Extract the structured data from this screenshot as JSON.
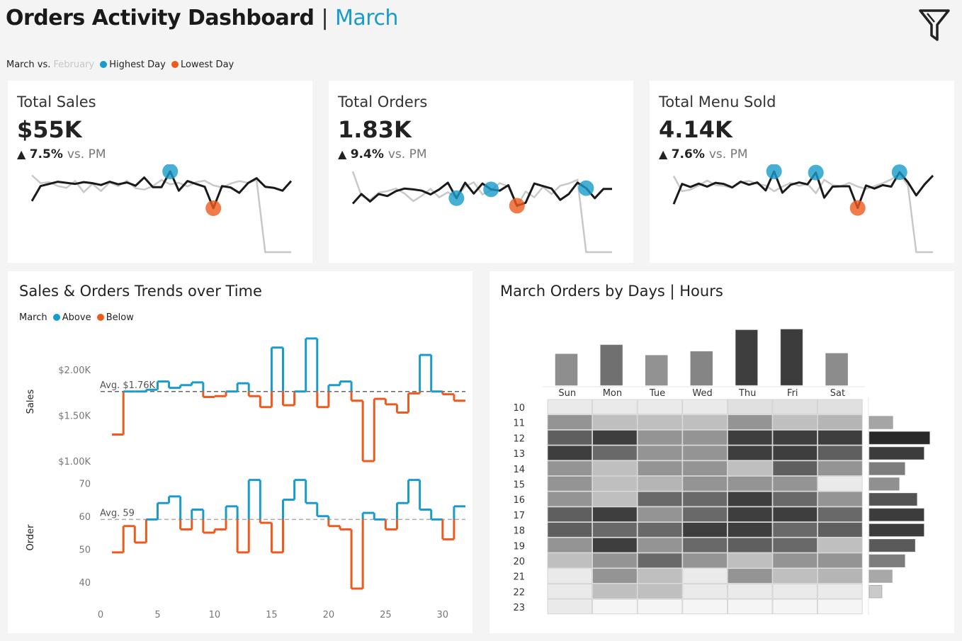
{
  "header": {
    "title": "Orders Activity Dashboard",
    "separator": "|",
    "month": "March"
  },
  "icons": {
    "filter": "filter-icon"
  },
  "legend_top": {
    "current": "March vs.",
    "previous": "February",
    "highest": "Highest  Day",
    "lowest": "Lowest Day"
  },
  "colors": {
    "accent": "#1a9bc9",
    "above": "#1a9bc9",
    "below": "#ee5a1e",
    "current_line": "#1a1a1a",
    "previous_line": "#c8c8c8"
  },
  "kpis": [
    {
      "label": "Total Sales",
      "value": "$55K",
      "arrow": "▲",
      "change": "7.5%",
      "vs": "vs. PM",
      "chart_data": {
        "type": "line",
        "series": [
          {
            "values": [
              2,
              6.2,
              6.8,
              7.4,
              7.1,
              6.8,
              7.3,
              7.0,
              6.5,
              7.4,
              6.7,
              7.2,
              6.3,
              8.6,
              5.9,
              5.9,
              10.3,
              4.9,
              7.6,
              6.8,
              6.0,
              0,
              6.2,
              5.8,
              4.3,
              7.0,
              8.4,
              6.0,
              5.7,
              4.9,
              7.6
            ]
          },
          {
            "values": [
              9.2,
              7.0,
              7.3,
              6.2,
              5.7,
              7.6,
              4.5,
              6.8,
              4.8,
              7.2,
              6.2,
              7.7,
              5.6,
              5.2,
              6.2,
              7.9,
              6.7,
              7.1,
              6.1,
              7.3,
              7.7,
              6.4,
              5.8,
              6.9,
              7.6,
              7.1,
              7.9,
              -12.3,
              -12.3,
              -12.3,
              -12.3
            ]
          }
        ],
        "highest_day": 17,
        "lowest_day": 22
      }
    },
    {
      "label": "Total Orders",
      "value": "1.83K",
      "arrow": "▲",
      "change": "9.4%",
      "vs": "vs. PM",
      "chart_data": {
        "type": "line",
        "series": [
          {
            "values": [
              2.0,
              4.3,
              2.5,
              4.3,
              3.8,
              5.0,
              5.6,
              5.4,
              5.1,
              4.2,
              5.4,
              7.0,
              3.3,
              7.0,
              4.4,
              6.8,
              5.4,
              5.1,
              6.4,
              1.5,
              2.2,
              6.8,
              6.2,
              5.6,
              2.9,
              4.3,
              7.0,
              5.7,
              3.3,
              5.5,
              5.5
            ]
          },
          {
            "values": [
              9.7,
              3.9,
              2.9,
              4.6,
              5.0,
              5.6,
              4.4,
              2.6,
              3.9,
              5.5,
              3.5,
              4.7,
              3.5,
              6.1,
              7.1,
              4.2,
              5.2,
              6.9,
              6.1,
              1.4,
              4.9,
              3.5,
              6.0,
              4.3,
              6.3,
              6.8,
              7.7,
              -9.6,
              -9.6,
              -9.6,
              -9.6
            ]
          }
        ],
        "highest_day": 12,
        "lowest_day": 22
      }
    },
    {
      "label": "Total Menu Sold",
      "value": "4.14K",
      "arrow": "▲",
      "change": "7.6%",
      "vs": "vs. PM",
      "chart_data": {
        "type": "line",
        "series": [
          {
            "values": [
              1.8,
              7.1,
              6.3,
              7.2,
              6.4,
              7.4,
              7.1,
              6.2,
              7.7,
              6.9,
              7.5,
              5.4,
              10.4,
              4.8,
              6.9,
              7.5,
              7.0,
              10.1,
              3.5,
              6.4,
              6.5,
              6.5,
              0.8,
              6.7,
              5.9,
              6.8,
              6.4,
              10.2,
              7.6,
              4.1,
              7.0,
              9.3
            ]
          },
          {
            "values": [
              9.2,
              5.2,
              5.6,
              6.7,
              8.0,
              6.8,
              6.6,
              6.1,
              7.5,
              7.9,
              7.1,
              6.7,
              5.2,
              6.4,
              7.4,
              6.6,
              7.1,
              4.7,
              8.2,
              6.8,
              6.5,
              7.4,
              6.4,
              5.8,
              6.5,
              7.3,
              8.3,
              9.7,
              6.8,
              -10.8,
              -10.8,
              -10.8
            ]
          }
        ],
        "highest_day": 17,
        "lowest_day": 22
      }
    }
  ],
  "trends": {
    "title": "Sales & Orders Trends over Time",
    "legend": {
      "month": "March",
      "above": "Above",
      "below": "Below"
    },
    "chart_data": [
      {
        "type": "line",
        "ylabel": "Sales",
        "y_ticks": [
          "$1.00K",
          "$1.50K",
          "$2.00K"
        ],
        "y_tick_values": [
          1000,
          1500,
          2000
        ],
        "ylim": [
          1000,
          2300
        ],
        "avg": 1760,
        "avg_label": "Avg. $1.76K",
        "x": [
          1,
          2,
          3,
          4,
          5,
          6,
          7,
          8,
          9,
          10,
          11,
          12,
          13,
          14,
          15,
          16,
          17,
          18,
          19,
          20,
          21,
          22,
          23,
          24,
          25,
          26,
          27,
          28,
          29,
          30,
          31
        ],
        "values": [
          1290,
          1760,
          1760,
          1780,
          1870,
          1800,
          1830,
          1860,
          1700,
          1710,
          1760,
          1850,
          1710,
          1590,
          2240,
          1610,
          1760,
          2340,
          1590,
          1830,
          1870,
          1660,
          1000,
          1680,
          1620,
          1530,
          1740,
          2160,
          1760,
          1730,
          1660
        ]
      },
      {
        "type": "line",
        "ylabel": "Order",
        "y_ticks": [
          "40",
          "50",
          "60",
          "70"
        ],
        "y_tick_values": [
          40,
          50,
          60,
          70
        ],
        "ylim": [
          35,
          72
        ],
        "avg": 59,
        "avg_label": "Avg. 59",
        "x_ticks": [
          "0",
          "5",
          "10",
          "15",
          "20",
          "25",
          "30"
        ],
        "x_tick_values": [
          0,
          5,
          10,
          15,
          20,
          25,
          30
        ],
        "xlim": [
          0,
          32
        ],
        "x": [
          1,
          2,
          3,
          4,
          5,
          6,
          7,
          8,
          9,
          10,
          11,
          12,
          13,
          14,
          15,
          16,
          17,
          18,
          19,
          20,
          21,
          22,
          23,
          24,
          25,
          26,
          27,
          28,
          29,
          30,
          31
        ],
        "values": [
          49,
          57,
          52,
          59,
          64,
          66,
          56,
          62,
          55,
          56,
          63,
          49,
          71,
          58,
          49,
          65,
          71,
          64,
          60,
          57,
          56,
          38,
          61,
          59,
          56,
          64,
          71,
          62,
          59,
          53,
          63
        ]
      }
    ]
  },
  "heatmap": {
    "title": "March Orders by Days | Hours",
    "chart_data": {
      "type": "heatmap",
      "days": [
        "Sun",
        "Mon",
        "Tue",
        "Wed",
        "Thu",
        "Fri",
        "Sat"
      ],
      "hours": [
        "10",
        "11",
        "12",
        "13",
        "14",
        "15",
        "16",
        "17",
        "18",
        "19",
        "20",
        "21",
        "22",
        "23"
      ],
      "day_totals": [
        0.48,
        0.62,
        0.46,
        0.52,
        0.85,
        0.86,
        0.49
      ],
      "hour_totals": [
        0,
        0.37,
        0.95,
        0.86,
        0.56,
        0.47,
        0.75,
        0.86,
        0.86,
        0.72,
        0.56,
        0.36,
        0.2,
        0
      ],
      "cells": [
        [
          0.05,
          0.05,
          0.05,
          0.05,
          0.1,
          0.1,
          0.1
        ],
        [
          0.45,
          0.25,
          0.25,
          0.25,
          0.45,
          0.25,
          0.3
        ],
        [
          0.7,
          0.85,
          0.45,
          0.45,
          0.85,
          0.85,
          0.85
        ],
        [
          0.85,
          0.65,
          0.45,
          0.45,
          0.85,
          0.85,
          0.7
        ],
        [
          0.45,
          0.25,
          0.45,
          0.45,
          0.25,
          0.7,
          0.45
        ],
        [
          0.45,
          0.25,
          0.3,
          0.45,
          0.45,
          0.45,
          0.05
        ],
        [
          0.45,
          0.25,
          0.65,
          0.65,
          0.85,
          0.65,
          0.45
        ],
        [
          0.7,
          0.85,
          0.45,
          0.65,
          0.85,
          0.85,
          0.65
        ],
        [
          0.7,
          0.65,
          0.65,
          0.85,
          0.85,
          0.65,
          0.7
        ],
        [
          0.45,
          0.85,
          0.45,
          0.65,
          0.7,
          0.65,
          0.25
        ],
        [
          0.25,
          0.45,
          0.65,
          0.45,
          0.25,
          0.45,
          0.45
        ],
        [
          0.05,
          0.45,
          0.25,
          0.05,
          0.45,
          0.25,
          0.3
        ],
        [
          0.05,
          0.25,
          0.25,
          0.05,
          0.05,
          0.05,
          0.05
        ],
        [
          0.05,
          0,
          0,
          0,
          0,
          0,
          0
        ]
      ]
    }
  }
}
